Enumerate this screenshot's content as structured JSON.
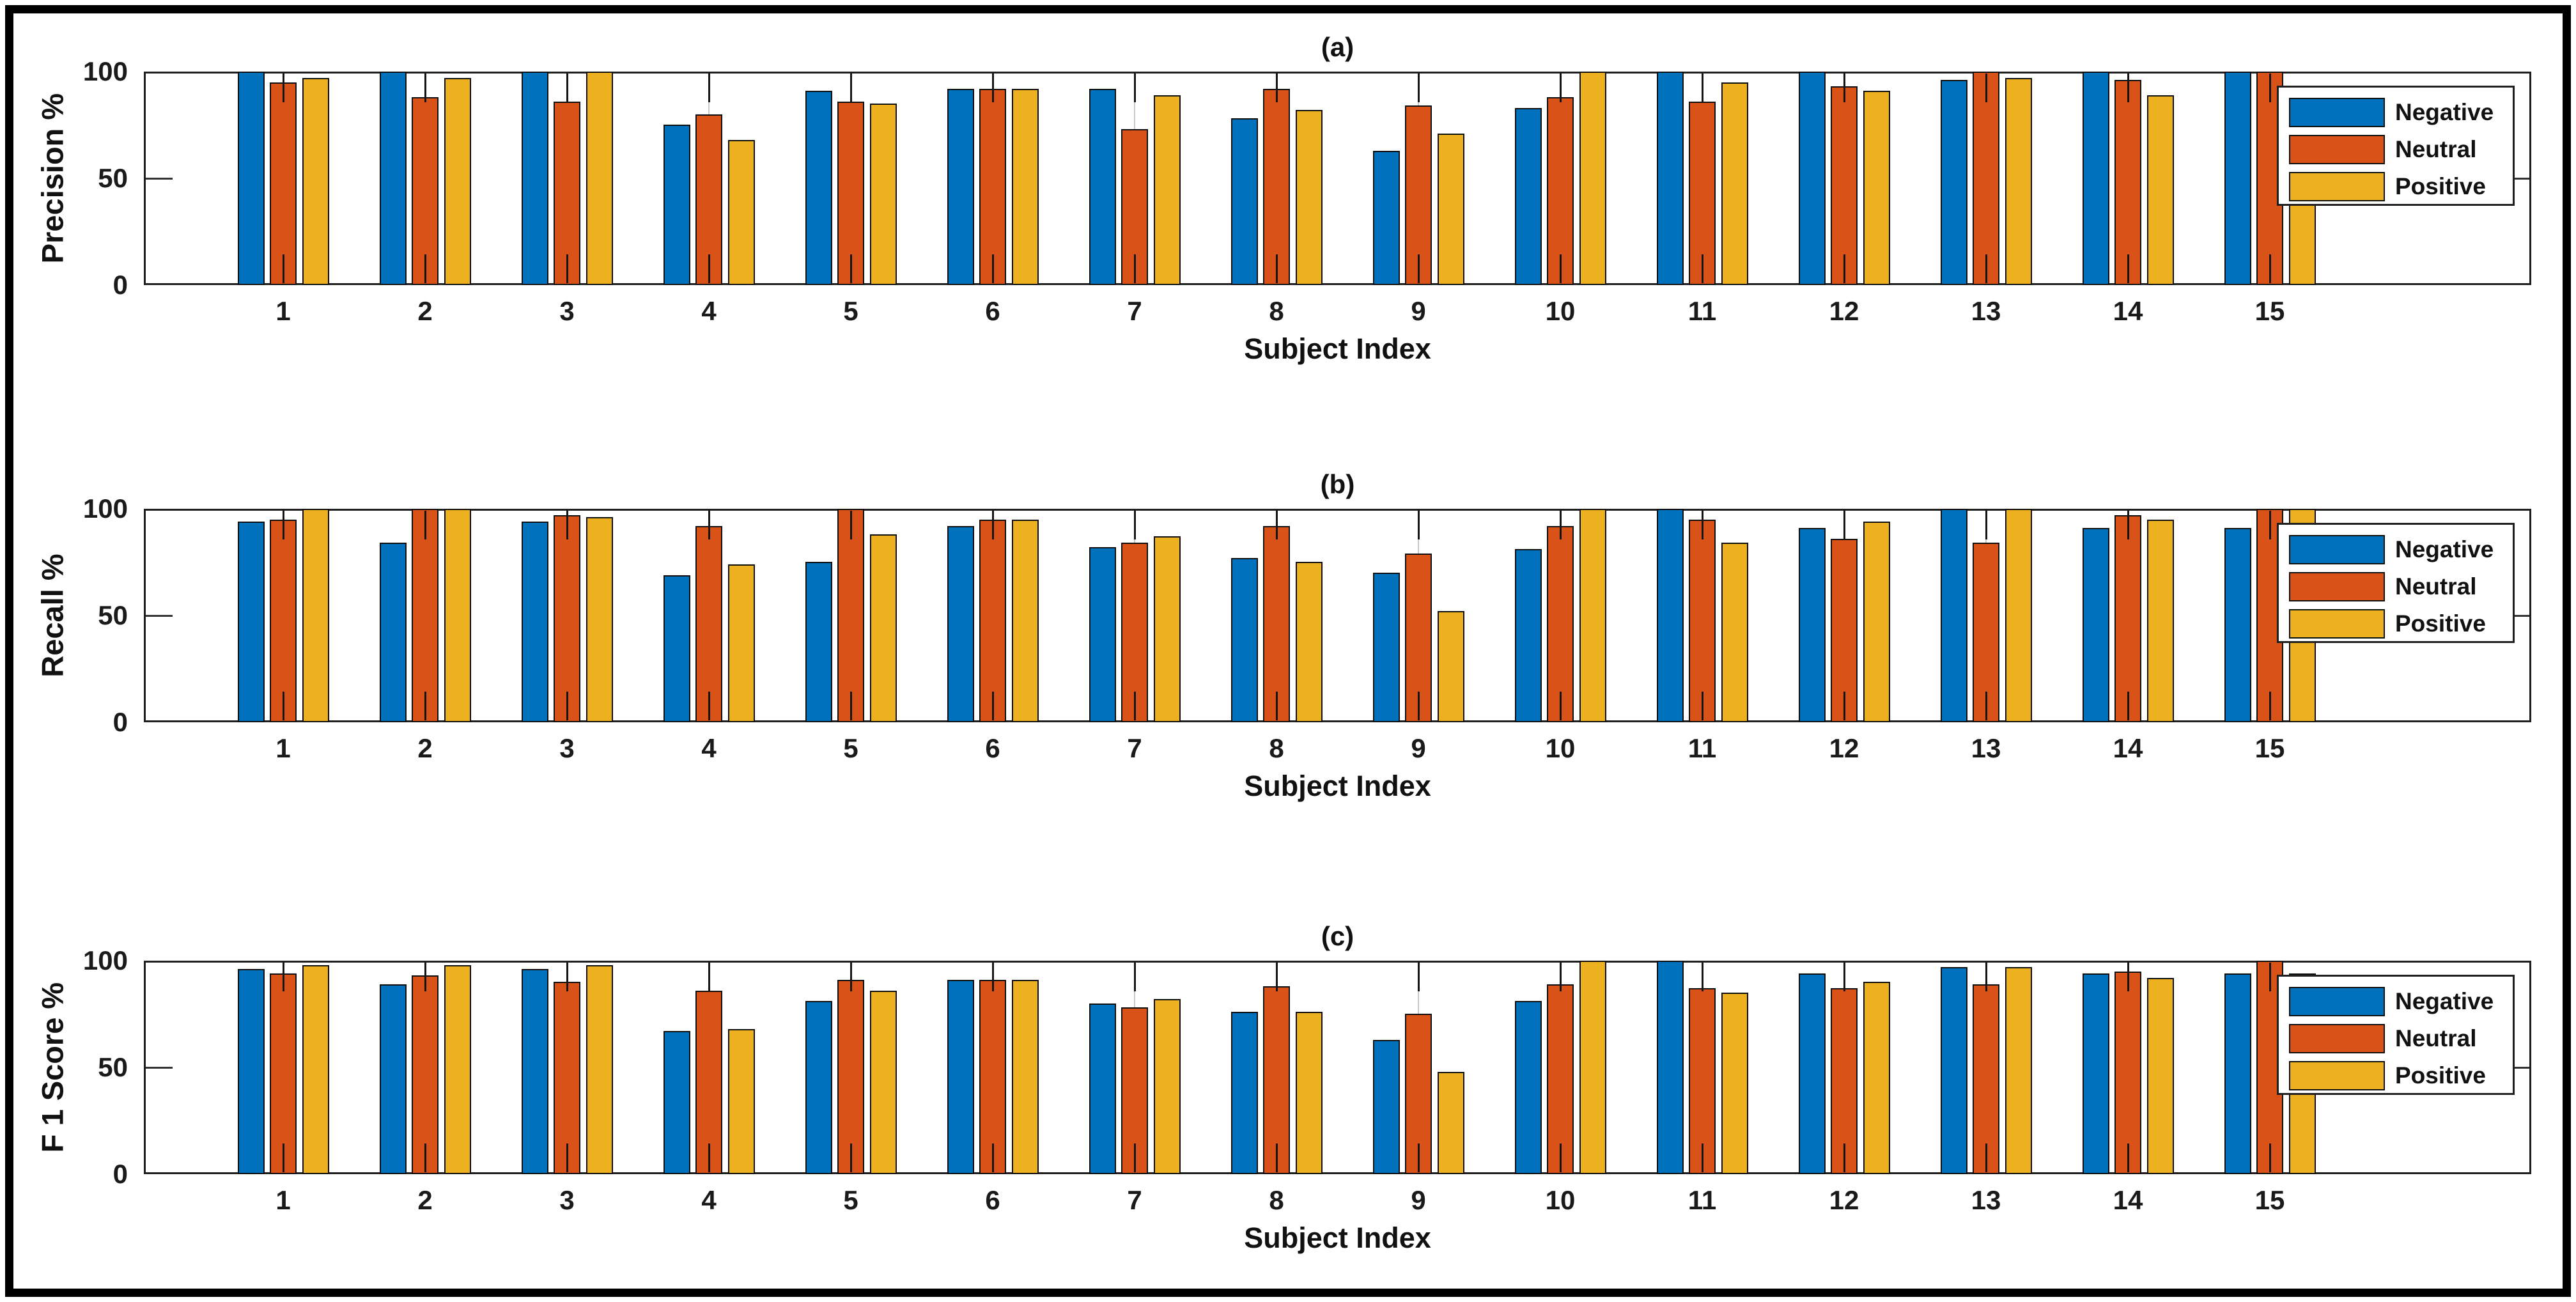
{
  "figure": {
    "background_color": "#ffffff",
    "border_color": "#000000"
  },
  "colors": {
    "negative": "#0072BD",
    "neutral": "#D95319",
    "positive": "#EDB120",
    "bar_edge": "#0f0f0f",
    "axis": "#1f1f1f",
    "gridline": "#c9c9c9"
  },
  "chart_data": [
    {
      "type": "bar",
      "title": "(a)",
      "ylabel": "Precision %",
      "xlabel": "Subject Index",
      "ylim": [
        0,
        100
      ],
      "yticks": [
        0,
        50,
        100
      ],
      "ytick_labels": [
        "0",
        "50",
        "100"
      ],
      "grid": "x-ticks-only",
      "legend_position": "upper-right-inside",
      "categories": [
        "1",
        "2",
        "3",
        "4",
        "5",
        "6",
        "7",
        "8",
        "9",
        "10",
        "11",
        "12",
        "13",
        "14",
        "15"
      ],
      "series": [
        {
          "name": "Negative",
          "color": "#0072BD",
          "values": [
            100,
            100,
            100,
            75,
            91,
            92,
            92,
            78,
            63,
            83,
            100,
            100,
            96,
            100,
            100
          ]
        },
        {
          "name": "Neutral",
          "color": "#D95319",
          "values": [
            95,
            88,
            86,
            80,
            86,
            92,
            73,
            92,
            84,
            88,
            86,
            93,
            100,
            96,
            100
          ]
        },
        {
          "name": "Positive",
          "color": "#EDB120",
          "values": [
            97,
            97,
            100,
            68,
            85,
            92,
            89,
            82,
            71,
            100,
            95,
            91,
            97,
            89,
            93
          ]
        }
      ]
    },
    {
      "type": "bar",
      "title": "(b)",
      "ylabel": "Recall %",
      "xlabel": "Subject Index",
      "ylim": [
        0,
        100
      ],
      "yticks": [
        0,
        50,
        100
      ],
      "ytick_labels": [
        "0",
        "50",
        "100"
      ],
      "grid": "x-ticks-only",
      "legend_position": "upper-right-inside",
      "categories": [
        "1",
        "2",
        "3",
        "4",
        "5",
        "6",
        "7",
        "8",
        "9",
        "10",
        "11",
        "12",
        "13",
        "14",
        "15"
      ],
      "series": [
        {
          "name": "Negative",
          "color": "#0072BD",
          "values": [
            94,
            84,
            94,
            69,
            75,
            92,
            82,
            77,
            70,
            81,
            100,
            91,
            100,
            91,
            91
          ]
        },
        {
          "name": "Neutral",
          "color": "#D95319",
          "values": [
            95,
            100,
            97,
            92,
            100,
            95,
            84,
            92,
            79,
            92,
            95,
            86,
            84,
            97,
            100
          ]
        },
        {
          "name": "Positive",
          "color": "#EDB120",
          "values": [
            100,
            100,
            96,
            74,
            88,
            95,
            87,
            75,
            52,
            100,
            84,
            94,
            100,
            95,
            100
          ]
        }
      ]
    },
    {
      "type": "bar",
      "title": "(c)",
      "ylabel": "F 1 Score %",
      "xlabel": "Subject Index",
      "ylim": [
        0,
        100
      ],
      "yticks": [
        0,
        50,
        100
      ],
      "ytick_labels": [
        "0",
        "50",
        "100"
      ],
      "grid": "x-ticks-only",
      "legend_position": "upper-right-inside",
      "categories": [
        "1",
        "2",
        "3",
        "4",
        "5",
        "6",
        "7",
        "8",
        "9",
        "10",
        "11",
        "12",
        "13",
        "14",
        "15"
      ],
      "series": [
        {
          "name": "Negative",
          "color": "#0072BD",
          "values": [
            96,
            89,
            96,
            67,
            81,
            91,
            80,
            76,
            63,
            81,
            100,
            94,
            97,
            94,
            94
          ]
        },
        {
          "name": "Neutral",
          "color": "#D95319",
          "values": [
            94,
            93,
            90,
            86,
            91,
            91,
            78,
            88,
            75,
            89,
            87,
            87,
            89,
            95,
            100
          ]
        },
        {
          "name": "Positive",
          "color": "#EDB120",
          "values": [
            98,
            98,
            98,
            68,
            86,
            91,
            82,
            76,
            48,
            100,
            85,
            90,
            97,
            92,
            94
          ]
        }
      ]
    }
  ]
}
